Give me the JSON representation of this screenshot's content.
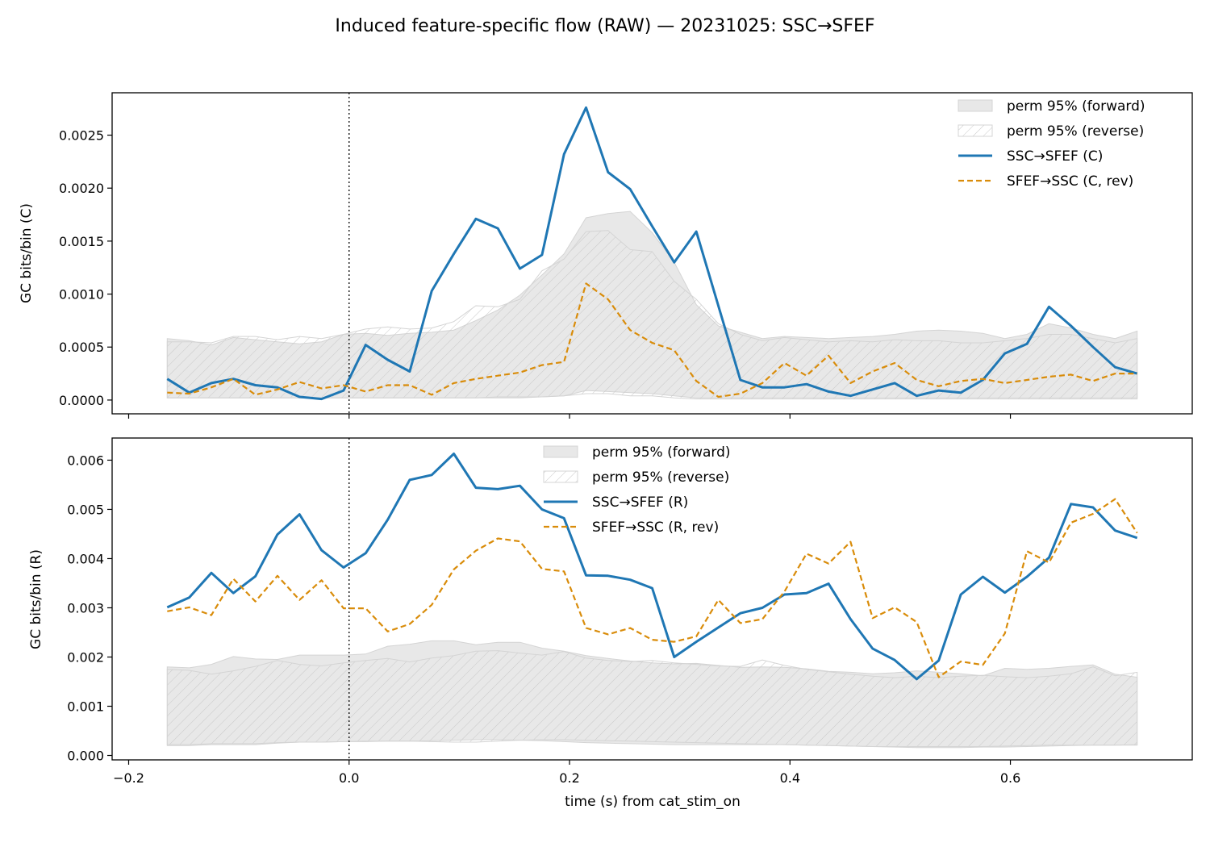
{
  "figure_title": "Induced feature-specific flow (RAW) — 20231025: SSC→SFEF",
  "colors": {
    "forward": "#1f77b4",
    "reverse": "#d98c0a",
    "band_fill": "#e8e8e8",
    "band_edge": "#d4d4d4",
    "hatch": "#c8c8c8",
    "stim_line": "#000000"
  },
  "chart_data": [
    {
      "type": "line",
      "title": "",
      "xlabel": "",
      "ylabel": "GC bits/bin (C)",
      "xlim": [
        -0.215,
        0.765
      ],
      "ylim": [
        -0.00013,
        0.0029
      ],
      "xticks": [
        -0.2,
        0.0,
        0.2,
        0.4,
        0.6
      ],
      "xtick_labels": [],
      "yticks": [
        0.0,
        0.0005,
        0.001,
        0.0015,
        0.002,
        0.0025
      ],
      "ytick_labels": [
        "0.0000",
        "0.0005",
        "0.0010",
        "0.0015",
        "0.0020",
        "0.0025"
      ],
      "vline_x": 0.0,
      "legend_position": "upper right",
      "x": [
        -0.165,
        -0.145,
        -0.125,
        -0.105,
        -0.085,
        -0.065,
        -0.045,
        -0.025,
        -0.005,
        0.015,
        0.035,
        0.055,
        0.075,
        0.095,
        0.115,
        0.135,
        0.155,
        0.175,
        0.195,
        0.215,
        0.235,
        0.255,
        0.275,
        0.295,
        0.315,
        0.335,
        0.355,
        0.375,
        0.395,
        0.415,
        0.435,
        0.455,
        0.475,
        0.495,
        0.515,
        0.535,
        0.555,
        0.575,
        0.595,
        0.615,
        0.635,
        0.655,
        0.675,
        0.695,
        0.715
      ],
      "bands": [
        {
          "name": "perm 95% (forward)",
          "style": "filled",
          "lower": [
            2e-05,
            2e-05,
            2e-05,
            2e-05,
            2e-05,
            2e-05,
            2e-05,
            2e-05,
            2e-05,
            2e-05,
            2e-05,
            2e-05,
            2e-05,
            2e-05,
            2e-05,
            2e-05,
            2e-05,
            3e-05,
            4e-05,
            9e-05,
            8e-05,
            7e-05,
            6e-05,
            4e-05,
            2e-05,
            2e-05,
            2e-05,
            2e-05,
            2e-05,
            2e-05,
            2e-05,
            2e-05,
            2e-05,
            2e-05,
            2e-05,
            2e-05,
            2e-05,
            2e-05,
            2e-05,
            2e-05,
            2e-05,
            2e-05,
            2e-05,
            2e-05,
            2e-05
          ],
          "upper": [
            0.00058,
            0.00056,
            0.00052,
            0.00059,
            0.00057,
            0.00055,
            0.00053,
            0.00055,
            0.00062,
            0.00063,
            0.00061,
            0.00063,
            0.00064,
            0.00066,
            0.00075,
            0.00085,
            0.00099,
            0.00118,
            0.00138,
            0.00172,
            0.00176,
            0.00178,
            0.00158,
            0.0013,
            0.0009,
            0.0007,
            0.00064,
            0.00058,
            0.0006,
            0.00059,
            0.00058,
            0.00059,
            0.0006,
            0.00062,
            0.00065,
            0.00066,
            0.00065,
            0.00063,
            0.00058,
            0.00062,
            0.00072,
            0.00068,
            0.00062,
            0.00058,
            0.00065
          ]
        },
        {
          "name": "perm 95% (reverse)",
          "style": "hatched",
          "lower": [
            2e-05,
            2e-05,
            2e-05,
            2e-05,
            2e-05,
            2e-05,
            2e-05,
            2e-05,
            2e-05,
            2e-05,
            2e-05,
            2e-05,
            2e-05,
            2e-05,
            2e-05,
            3e-05,
            3e-05,
            3e-05,
            4e-05,
            6e-05,
            6e-05,
            4e-05,
            4e-05,
            2e-05,
            1e-05,
            1e-05,
            1e-05,
            1e-05,
            1e-05,
            1e-05,
            1e-05,
            1e-05,
            1e-05,
            1e-05,
            1e-05,
            1e-05,
            1e-05,
            1e-05,
            1e-05,
            1e-05,
            1e-05,
            1e-05,
            1e-05,
            1e-05,
            1e-05
          ],
          "upper": [
            0.00055,
            0.00055,
            0.00054,
            0.0006,
            0.0006,
            0.00057,
            0.0006,
            0.00058,
            0.00062,
            0.00067,
            0.00069,
            0.00067,
            0.00068,
            0.00074,
            0.00089,
            0.00088,
            0.00095,
            0.00122,
            0.00133,
            0.00159,
            0.0016,
            0.00142,
            0.0014,
            0.00112,
            0.00095,
            0.00072,
            0.00062,
            0.00056,
            0.00059,
            0.00057,
            0.00055,
            0.00056,
            0.00055,
            0.00057,
            0.00056,
            0.00056,
            0.00054,
            0.00054,
            0.00056,
            0.00058,
            0.00062,
            0.00062,
            0.00058,
            0.00054,
            0.00058
          ]
        }
      ],
      "series": [
        {
          "name": "SSC→SFEF (C)",
          "style": "solid",
          "values": [
            0.0002,
            7e-05,
            0.00016,
            0.0002,
            0.00014,
            0.00012,
            3e-05,
            1e-05,
            9e-05,
            0.00052,
            0.00038,
            0.00027,
            0.00103,
            0.00138,
            0.00171,
            0.00162,
            0.00124,
            0.00137,
            0.00232,
            0.00276,
            0.00215,
            0.00199,
            0.00164,
            0.0013,
            0.00159,
            0.00089,
            0.00019,
            0.00012,
            0.00012,
            0.00015,
            8e-05,
            4e-05,
            0.0001,
            0.00016,
            4e-05,
            9e-05,
            7e-05,
            0.00019,
            0.00044,
            0.00053,
            0.00088,
            0.0007,
            0.0005,
            0.00031,
            0.00025
          ]
        },
        {
          "name": "SFEF→SSC (C, rev)",
          "style": "dashed",
          "values": [
            7e-05,
            6e-05,
            0.00012,
            0.0002,
            5e-05,
            0.0001,
            0.00017,
            0.00011,
            0.00014,
            8e-05,
            0.00014,
            0.00014,
            5e-05,
            0.00016,
            0.0002,
            0.00023,
            0.00026,
            0.00033,
            0.00036,
            0.0011,
            0.00095,
            0.00066,
            0.00054,
            0.00047,
            0.00018,
            3e-05,
            6e-05,
            0.00016,
            0.00035,
            0.00023,
            0.00042,
            0.00016,
            0.00027,
            0.00035,
            0.00019,
            0.00013,
            0.00018,
            0.0002,
            0.00016,
            0.00019,
            0.00022,
            0.00024,
            0.00018,
            0.00025,
            0.00025
          ]
        }
      ]
    },
    {
      "type": "line",
      "title": "",
      "xlabel": "time (s) from cat_stim_on",
      "ylabel": "GC bits/bin (R)",
      "xlim": [
        -0.215,
        0.765
      ],
      "ylim": [
        -9e-05,
        0.00645
      ],
      "xticks": [
        -0.2,
        0.0,
        0.2,
        0.4,
        0.6
      ],
      "xtick_labels": [
        "−0.2",
        "0.0",
        "0.2",
        "0.4",
        "0.6"
      ],
      "yticks": [
        0.0,
        0.001,
        0.002,
        0.003,
        0.004,
        0.005,
        0.006
      ],
      "ytick_labels": [
        "0.000",
        "0.001",
        "0.002",
        "0.003",
        "0.004",
        "0.005",
        "0.006"
      ],
      "vline_x": 0.0,
      "legend_position": "upper center",
      "x": [
        -0.165,
        -0.145,
        -0.125,
        -0.105,
        -0.085,
        -0.065,
        -0.045,
        -0.025,
        -0.005,
        0.015,
        0.035,
        0.055,
        0.075,
        0.095,
        0.115,
        0.135,
        0.155,
        0.175,
        0.195,
        0.215,
        0.235,
        0.255,
        0.275,
        0.295,
        0.315,
        0.335,
        0.355,
        0.375,
        0.395,
        0.415,
        0.435,
        0.455,
        0.475,
        0.495,
        0.515,
        0.535,
        0.555,
        0.575,
        0.595,
        0.615,
        0.635,
        0.655,
        0.675,
        0.695,
        0.715
      ],
      "bands": [
        {
          "name": "perm 95% (forward)",
          "style": "filled",
          "lower": [
            0.0002,
            0.0002,
            0.00022,
            0.00022,
            0.00022,
            0.00025,
            0.00027,
            0.00027,
            0.00028,
            0.00028,
            0.00029,
            0.00029,
            0.0003,
            0.00031,
            0.00032,
            0.00032,
            0.00031,
            0.0003,
            0.00028,
            0.00026,
            0.00025,
            0.00024,
            0.00023,
            0.00022,
            0.00022,
            0.00022,
            0.00022,
            0.00022,
            0.00022,
            0.00021,
            0.0002,
            0.00019,
            0.00018,
            0.00017,
            0.00016,
            0.00016,
            0.00016,
            0.00017,
            0.00017,
            0.00018,
            0.00019,
            0.0002,
            0.00021,
            0.00021,
            0.00022
          ],
          "upper": [
            0.0018,
            0.00178,
            0.00185,
            0.00201,
            0.00196,
            0.00195,
            0.00204,
            0.00204,
            0.00204,
            0.00206,
            0.00222,
            0.00226,
            0.00233,
            0.00233,
            0.00225,
            0.0023,
            0.0023,
            0.00218,
            0.00212,
            0.00203,
            0.00197,
            0.00192,
            0.00188,
            0.00186,
            0.00187,
            0.00183,
            0.00179,
            0.0018,
            0.00179,
            0.00176,
            0.00171,
            0.00169,
            0.00166,
            0.00168,
            0.00172,
            0.00169,
            0.00166,
            0.00162,
            0.00177,
            0.00175,
            0.00177,
            0.00181,
            0.00184,
            0.00165,
            0.00159
          ]
        },
        {
          "name": "perm 95% (reverse)",
          "style": "hatched",
          "lower": [
            0.00022,
            0.00022,
            0.00024,
            0.00024,
            0.00024,
            0.00026,
            0.00027,
            0.00027,
            0.00028,
            0.00029,
            0.00029,
            0.00029,
            0.00028,
            0.00027,
            0.00027,
            0.00029,
            0.00031,
            0.00032,
            0.00032,
            0.00031,
            0.0003,
            0.00029,
            0.00028,
            0.00027,
            0.00026,
            0.00025,
            0.00024,
            0.00023,
            0.00022,
            0.00021,
            0.0002,
            0.00019,
            0.00018,
            0.00018,
            0.00018,
            0.00018,
            0.00018,
            0.00018,
            0.00019,
            0.0002,
            0.00021,
            0.00021,
            0.00021,
            0.00021,
            0.00021
          ],
          "upper": [
            0.00175,
            0.00173,
            0.00165,
            0.00172,
            0.00181,
            0.00193,
            0.00185,
            0.00182,
            0.00188,
            0.00193,
            0.00197,
            0.0019,
            0.00198,
            0.00203,
            0.00212,
            0.00213,
            0.00208,
            0.00204,
            0.00211,
            0.00198,
            0.00193,
            0.00191,
            0.00193,
            0.00188,
            0.00185,
            0.00182,
            0.00181,
            0.00194,
            0.00183,
            0.00175,
            0.0017,
            0.00165,
            0.00161,
            0.00158,
            0.00161,
            0.00158,
            0.00161,
            0.00163,
            0.0016,
            0.00158,
            0.00161,
            0.00166,
            0.0018,
            0.00162,
            0.00169
          ]
        }
      ],
      "series": [
        {
          "name": "SSC→SFEF (R)",
          "style": "solid",
          "values": [
            0.00301,
            0.00321,
            0.00371,
            0.0033,
            0.00364,
            0.00449,
            0.0049,
            0.00417,
            0.00382,
            0.00411,
            0.00479,
            0.0056,
            0.0057,
            0.00613,
            0.00544,
            0.00541,
            0.00548,
            0.005,
            0.00482,
            0.00366,
            0.00365,
            0.00357,
            0.0034,
            0.002,
            0.00231,
            0.0026,
            0.00289,
            0.003,
            0.00327,
            0.0033,
            0.00349,
            0.00277,
            0.00217,
            0.00194,
            0.00155,
            0.00193,
            0.00327,
            0.00363,
            0.00331,
            0.00363,
            0.00402,
            0.00511,
            0.00504,
            0.00457,
            0.00442
          ]
        },
        {
          "name": "SFEF→SSC (R, rev)",
          "style": "dashed",
          "values": [
            0.00293,
            0.00301,
            0.00285,
            0.00359,
            0.00313,
            0.00365,
            0.00316,
            0.00356,
            0.00299,
            0.00299,
            0.00252,
            0.00267,
            0.00306,
            0.00378,
            0.00416,
            0.00441,
            0.00435,
            0.00379,
            0.00374,
            0.00259,
            0.00246,
            0.00259,
            0.00235,
            0.00231,
            0.00242,
            0.00316,
            0.00269,
            0.00277,
            0.00333,
            0.0041,
            0.0039,
            0.00434,
            0.00279,
            0.00301,
            0.00271,
            0.00159,
            0.00191,
            0.00184,
            0.00248,
            0.00415,
            0.00392,
            0.00473,
            0.00491,
            0.00521,
            0.00452
          ]
        }
      ]
    }
  ]
}
